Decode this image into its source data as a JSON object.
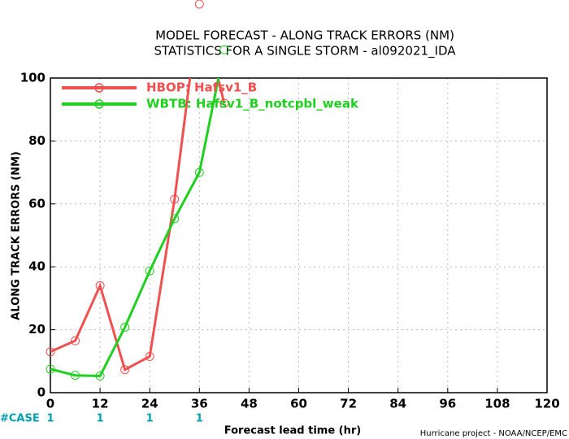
{
  "chart_data": {
    "type": "line",
    "title": "MODEL FORECAST - ALONG TRACK ERRORS (NM)",
    "subtitle": "STATISTICS FOR A SINGLE STORM - al092021_IDA",
    "x_label": "Forecast lead time (hr)",
    "y_label": "ALONG TRACK ERRORS (NM)",
    "footer": "Hurricane project - NOAA/NCEP/EMC",
    "x": [
      0,
      6,
      12,
      18,
      24,
      30,
      36,
      42
    ],
    "series": [
      {
        "name": "HBOP: Hafsv1_B",
        "color": "#f05050",
        "values": [
          13,
          16.5,
          34,
          7.3,
          11.5,
          61.5,
          123.5,
          92
        ]
      },
      {
        "name": "WBTB: Hafsv1_B_notcpbl_weak",
        "color": "#20d020",
        "values": [
          7.5,
          5.5,
          5.3,
          20.8,
          38.7,
          55.3,
          70,
          109
        ]
      }
    ],
    "xlim": [
      0,
      120
    ],
    "xticks": [
      0,
      12,
      24,
      36,
      48,
      60,
      72,
      84,
      96,
      108,
      120
    ],
    "ylim": [
      0,
      100
    ],
    "yticks": [
      0,
      20,
      40,
      60,
      80,
      100
    ],
    "grid": true,
    "legend": "upper-left",
    "case_label": "#CASE",
    "case_counts": {
      "x": [
        0,
        12,
        24,
        36
      ],
      "values": [
        1,
        1,
        1,
        1
      ]
    }
  }
}
